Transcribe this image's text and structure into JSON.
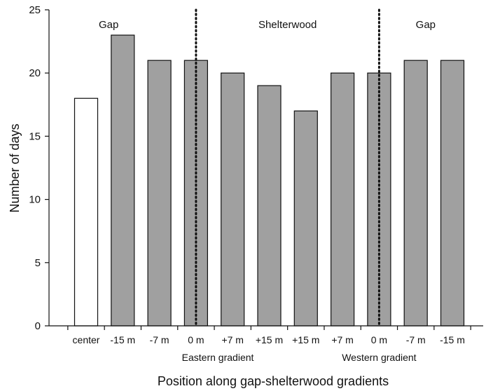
{
  "chart_data": {
    "type": "bar",
    "title": "",
    "xlabel": "Position along gap-shelterwood gradients",
    "ylabel": "Number of days",
    "ylim": [
      0,
      25
    ],
    "yticks": [
      0,
      5,
      10,
      15,
      20,
      25
    ],
    "grid": false,
    "categories": [
      "center",
      "-15 m",
      "-7 m",
      "0 m",
      "+7 m",
      "+15 m",
      "+15 m",
      "+7 m",
      "0 m",
      "-7 m",
      "-15 m"
    ],
    "values": [
      18,
      23,
      21,
      21,
      20,
      19,
      17,
      20,
      20,
      21,
      21
    ],
    "bar_colors": [
      "#ffffff",
      "#a0a0a0",
      "#a0a0a0",
      "#a0a0a0",
      "#a0a0a0",
      "#a0a0a0",
      "#a0a0a0",
      "#a0a0a0",
      "#a0a0a0",
      "#a0a0a0",
      "#a0a0a0"
    ],
    "group_labels": [
      "Eastern gradient",
      "Western gradient"
    ],
    "region_labels": [
      "Gap",
      "Shelterwood",
      "Gap"
    ],
    "divider_categories": [
      3,
      8
    ]
  }
}
